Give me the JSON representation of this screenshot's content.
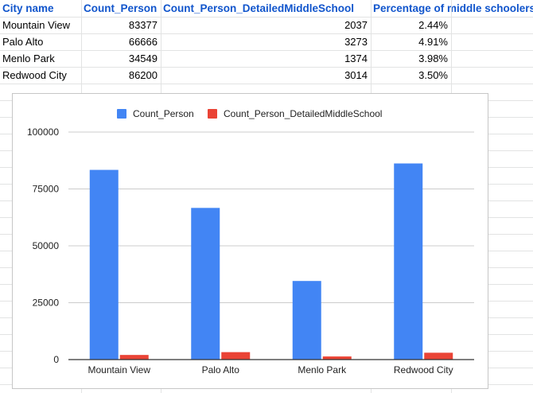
{
  "sheet": {
    "headers": [
      "City name",
      "Count_Person",
      "Count_Person_DetailedMiddleSchool",
      "Percentage of middle schoolers"
    ],
    "rows": [
      [
        "Mountain View",
        "83377",
        "2037",
        "2.44%"
      ],
      [
        "Palo Alto",
        "66666",
        "3273",
        "4.91%"
      ],
      [
        "Menlo Park",
        "34549",
        "1374",
        "3.98%"
      ],
      [
        "Redwood City",
        "86200",
        "3014",
        "3.50%"
      ]
    ]
  },
  "colors": {
    "header_text": "#1155cc",
    "series_1": "#4285f4",
    "series_2": "#ea4335",
    "gridline": "#cccccc",
    "axis": "#333333"
  },
  "chart_data": {
    "type": "bar",
    "title": "",
    "xlabel": "",
    "ylabel": "",
    "categories": [
      "Mountain View",
      "Palo Alto",
      "Menlo Park",
      "Redwood City"
    ],
    "series": [
      {
        "name": "Count_Person",
        "values": [
          83377,
          66666,
          34549,
          86200
        ]
      },
      {
        "name": "Count_Person_DetailedMiddleSchool",
        "values": [
          2037,
          3273,
          1374,
          3014
        ]
      }
    ],
    "ylim": [
      0,
      100000
    ],
    "yticks": [
      "0",
      "25000",
      "50000",
      "75000",
      "100000"
    ],
    "legend_position": "top",
    "grid": true
  }
}
